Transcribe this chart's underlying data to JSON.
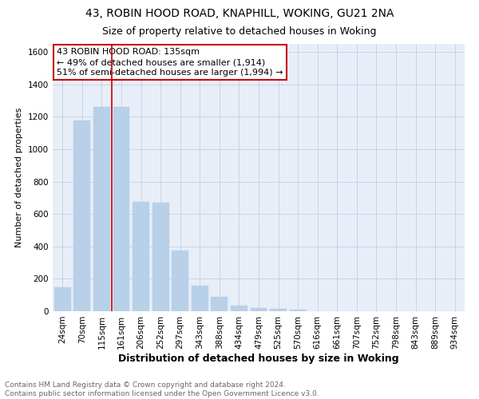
{
  "title1": "43, ROBIN HOOD ROAD, KNAPHILL, WOKING, GU21 2NA",
  "title2": "Size of property relative to detached houses in Woking",
  "xlabel": "Distribution of detached houses by size in Woking",
  "ylabel": "Number of detached properties",
  "categories": [
    "24sqm",
    "70sqm",
    "115sqm",
    "161sqm",
    "206sqm",
    "252sqm",
    "297sqm",
    "343sqm",
    "388sqm",
    "434sqm",
    "479sqm",
    "525sqm",
    "570sqm",
    "616sqm",
    "661sqm",
    "707sqm",
    "752sqm",
    "798sqm",
    "843sqm",
    "889sqm",
    "934sqm"
  ],
  "values": [
    150,
    1175,
    1260,
    1260,
    675,
    670,
    375,
    160,
    88,
    35,
    22,
    15,
    10,
    0,
    0,
    0,
    0,
    0,
    0,
    0,
    0
  ],
  "bar_color": "#b8d0e8",
  "bar_edgecolor": "#b8d0e8",
  "vline_x": 2.5,
  "vline_color": "#cc0000",
  "annotation_line1": "43 ROBIN HOOD ROAD: 135sqm",
  "annotation_line2": "← 49% of detached houses are smaller (1,914)",
  "annotation_line3": "51% of semi-detached houses are larger (1,994) →",
  "annotation_box_color": "#cc0000",
  "annotation_facecolor": "white",
  "ylim": [
    0,
    1650
  ],
  "yticks": [
    0,
    200,
    400,
    600,
    800,
    1000,
    1200,
    1400,
    1600
  ],
  "grid_color": "#c8d4e4",
  "background_color": "#e8eef8",
  "footer": "Contains HM Land Registry data © Crown copyright and database right 2024.\nContains public sector information licensed under the Open Government Licence v3.0.",
  "title1_fontsize": 10,
  "title2_fontsize": 9,
  "xlabel_fontsize": 9,
  "ylabel_fontsize": 8,
  "tick_fontsize": 7.5,
  "annotation_fontsize": 8,
  "footer_fontsize": 6.5
}
